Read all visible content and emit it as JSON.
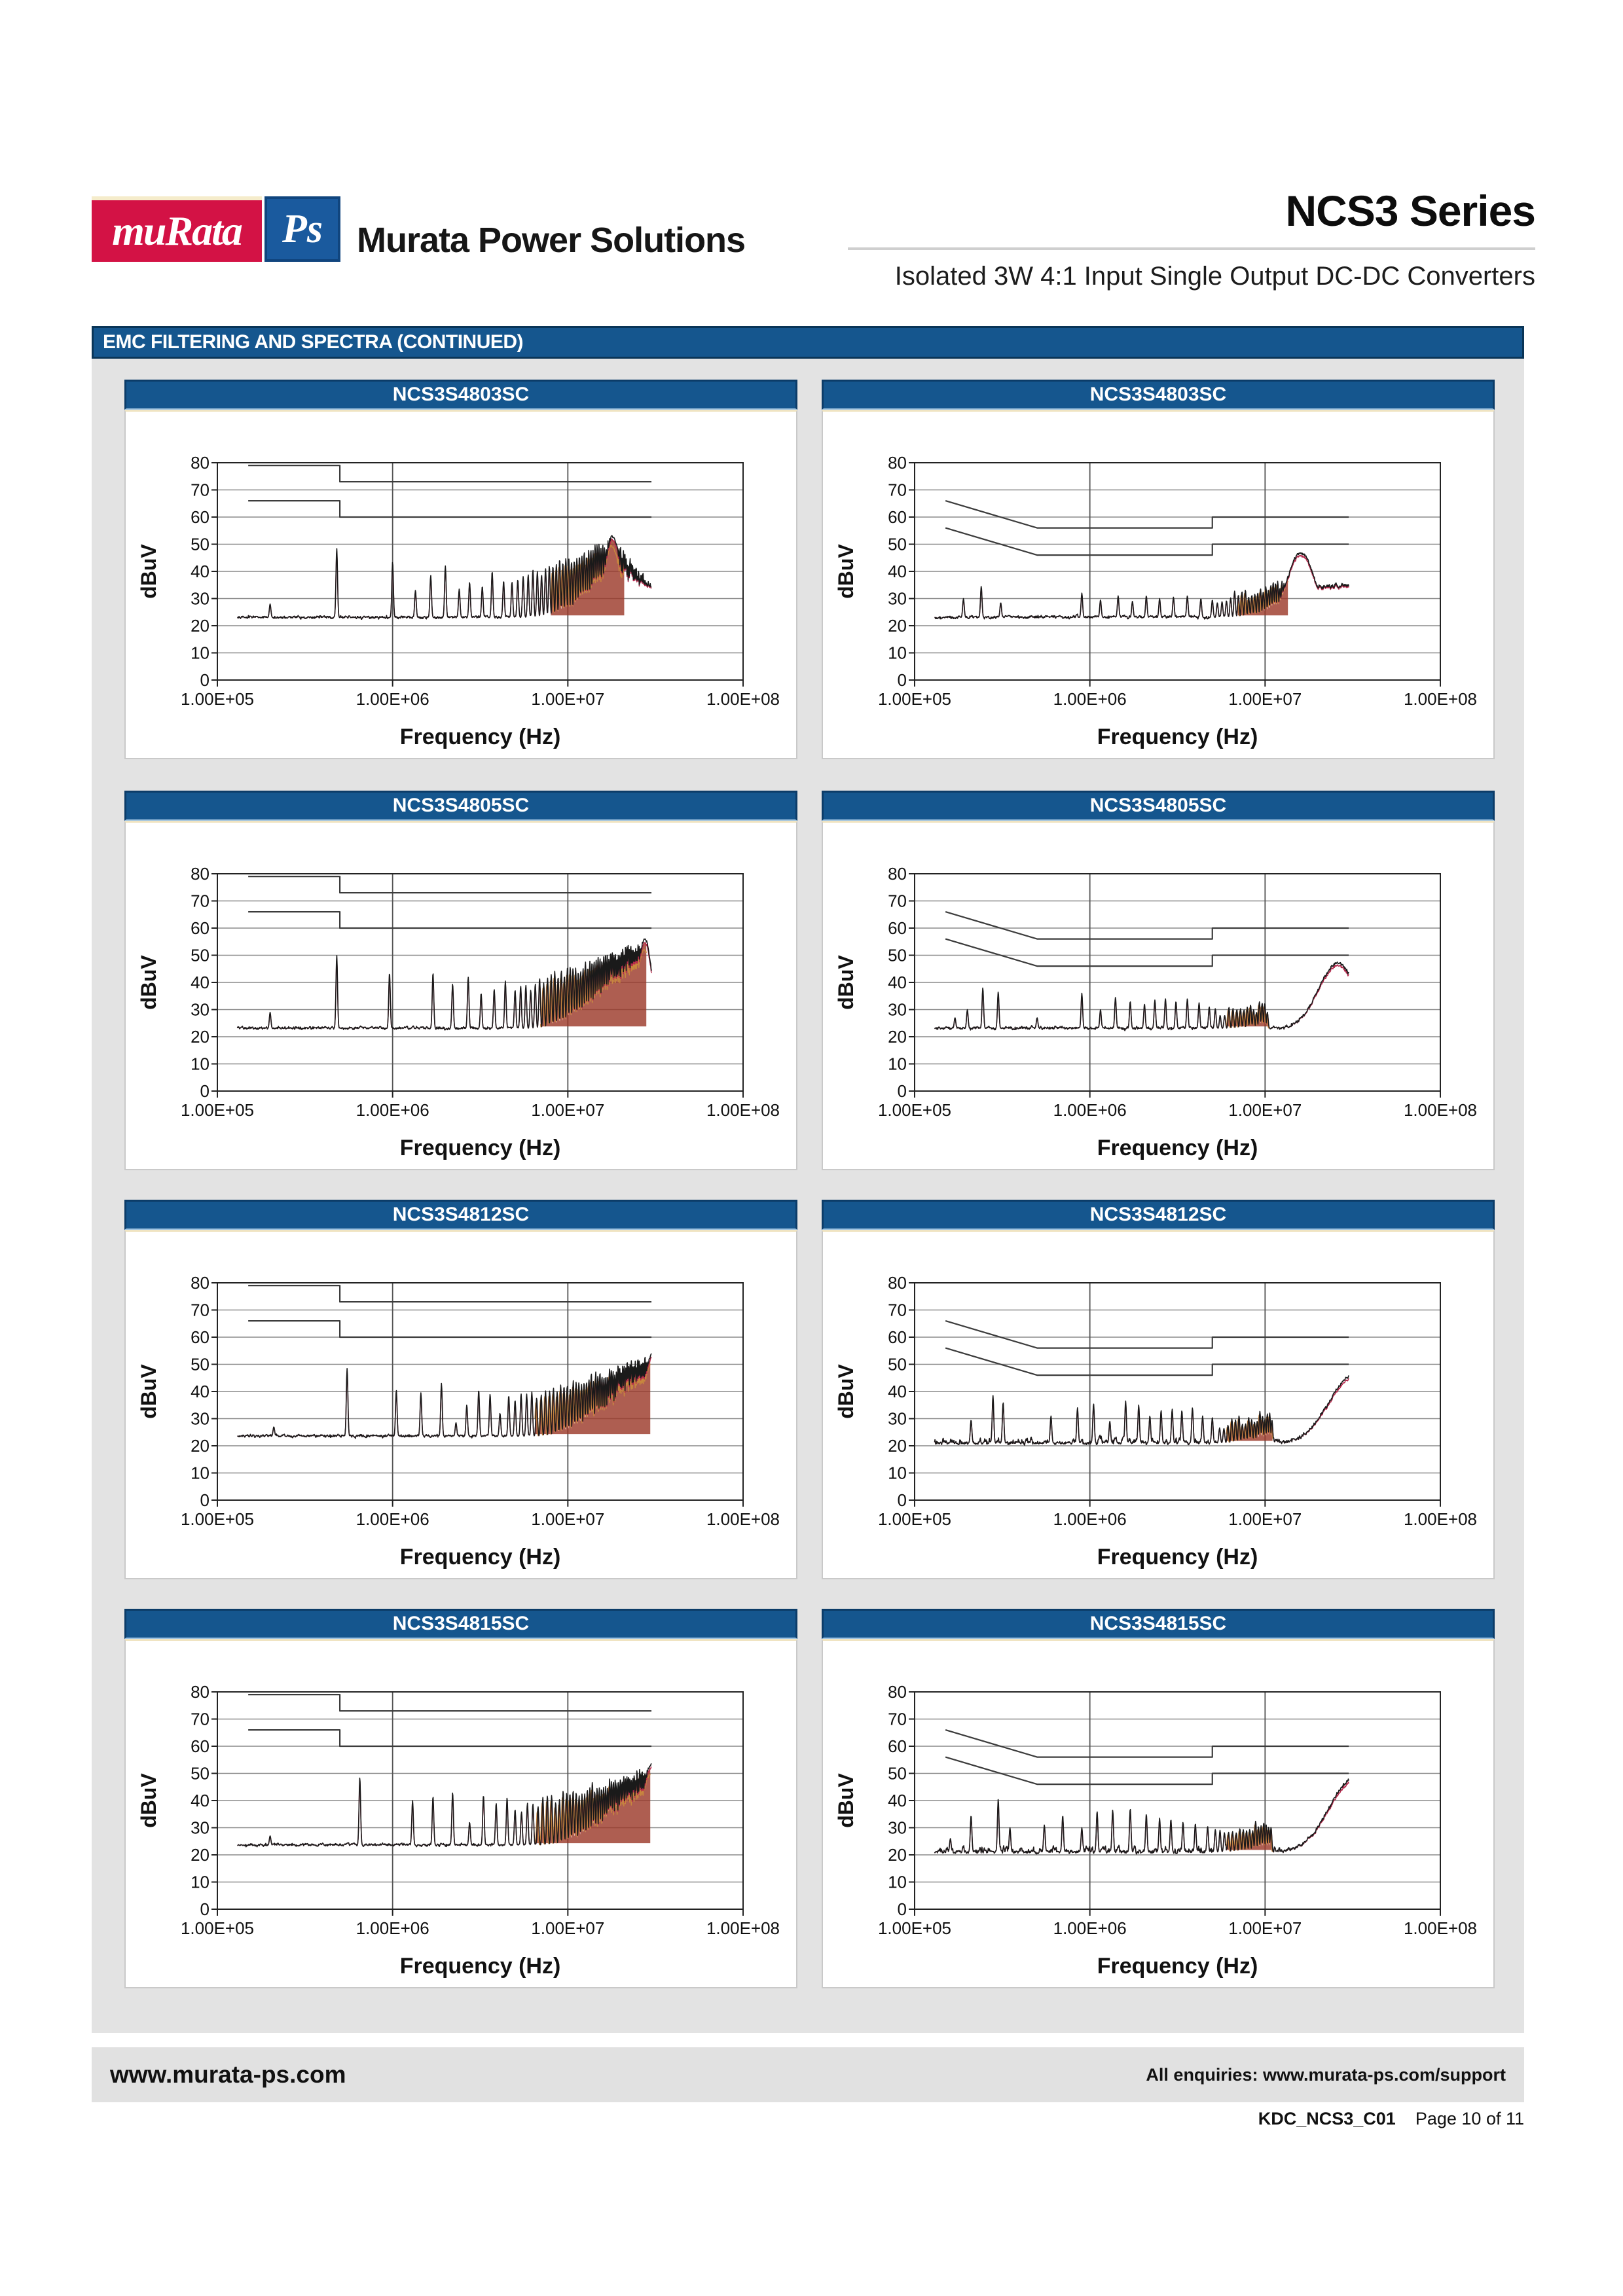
{
  "header": {
    "logo_text": "muRata",
    "logo_ps": "Ps",
    "company": "Murata Power Solutions",
    "series_title": "NCS3 Series",
    "subtitle": "Isolated 3W 4:1 Input Single Output DC-DC Converters"
  },
  "section_banner": "EMC FILTERING AND SPECTRA (CONTINUED)",
  "footer": {
    "site": "www.murata-ps.com",
    "enquiries": "All enquiries: www.murata-ps.com/support",
    "doc_code": "KDC_NCS3_C01",
    "page": "Page 10 of 11"
  },
  "colors": {
    "banner_blue": "#15568E",
    "panel_border_navy": "#0C3C68",
    "murata_red": "#D31245",
    "ps_blue": "#1A5A9E",
    "grid": "#8a8a8a",
    "decade_grid": "#555555",
    "axis": "#222222",
    "limit_line": "#3c3c3c",
    "trace_black": "#1a1a1a",
    "trace_red": "#B5274B",
    "trace_orange": "#C8873E",
    "fill_maroon": "#9A3626"
  },
  "chart_defaults": {
    "type": "line",
    "xlabel": "Frequency (Hz)",
    "ylabel": "dBuV",
    "x_ticks": [
      "1.00E+05",
      "1.00E+06",
      "1.00E+07",
      "1.00E+08"
    ],
    "y_ticks": [
      0,
      10,
      20,
      30,
      40,
      50,
      60,
      70,
      80
    ],
    "ylim": [
      0,
      80
    ],
    "xlim_hz": [
      100000,
      100000000
    ],
    "grid": true
  },
  "limit_profiles": {
    "A": {
      "quasi_peak": [
        [
          150000,
          79
        ],
        [
          500000,
          79
        ],
        [
          500000,
          73
        ],
        [
          30000000,
          73
        ]
      ],
      "average": [
        [
          150000,
          66
        ],
        [
          500000,
          66
        ],
        [
          500000,
          60
        ],
        [
          30000000,
          60
        ]
      ]
    },
    "B": {
      "quasi_peak": [
        [
          150000,
          66
        ],
        [
          500000,
          56
        ],
        [
          5000000,
          56
        ],
        [
          5000000,
          60
        ],
        [
          30000000,
          60
        ]
      ],
      "average": [
        [
          150000,
          56
        ],
        [
          500000,
          46
        ],
        [
          5000000,
          46
        ],
        [
          5000000,
          50
        ],
        [
          30000000,
          50
        ]
      ]
    }
  },
  "chart_data": [
    {
      "title": "NCS3S4803SC",
      "limit_profile": "A",
      "trace": {
        "seed": 11,
        "floor_db": 23,
        "floor_jitter": 0.7,
        "start_hz": 130000,
        "end_hz": 30000000,
        "peaks": [
          [
            200000,
            28
          ],
          [
            480000,
            48.5
          ],
          [
            1000000,
            43.5
          ],
          [
            1350000,
            33
          ],
          [
            1650000,
            38.5
          ],
          [
            2000000,
            42
          ],
          [
            2400000,
            33.5
          ],
          [
            2750000,
            36
          ],
          [
            3250000,
            34.5
          ],
          [
            3700000,
            40
          ],
          [
            4300000,
            36.5
          ]
        ],
        "comb": {
          "start_hz": 4800000,
          "stop_hz": 30000000,
          "step_hz": 380000,
          "from_db": 36,
          "peak_hz": 18000000,
          "peak_db": 51,
          "end_db": 34
        },
        "hump": {
          "hz": 18000000,
          "db": 53,
          "w": 0.045
        },
        "tail_db": 35,
        "fill": {
          "from_hz": 8000000,
          "to_hz": 21000000
        }
      }
    },
    {
      "title": "NCS3S4803SC",
      "limit_profile": "B",
      "trace": {
        "seed": 22,
        "floor_db": 23,
        "floor_jitter": 0.8,
        "start_hz": 130000,
        "end_hz": 30000000,
        "peaks": [
          [
            190000,
            30
          ],
          [
            240000,
            34.5
          ],
          [
            310000,
            28.5
          ],
          [
            900000,
            32
          ],
          [
            1150000,
            29.5
          ],
          [
            1450000,
            31
          ],
          [
            1750000,
            29
          ],
          [
            2100000,
            31
          ],
          [
            2500000,
            30
          ],
          [
            3000000,
            30.5
          ],
          [
            3600000,
            31
          ],
          [
            4300000,
            30
          ]
        ],
        "comb": {
          "start_hz": 5000000,
          "stop_hz": 13500000,
          "step_hz": 340000,
          "from_db": 29,
          "peak_hz": 13000000,
          "peak_db": 36,
          "end_db": 36
        },
        "hump": {
          "hz": 16000000,
          "db": 47,
          "w": 0.075
        },
        "tail_db": 35,
        "fill": {
          "from_hz": 7000000,
          "to_hz": 13500000
        }
      }
    },
    {
      "title": "NCS3S4805SC",
      "limit_profile": "A",
      "trace": {
        "seed": 33,
        "floor_db": 23,
        "floor_jitter": 0.7,
        "start_hz": 130000,
        "end_hz": 30000000,
        "peaks": [
          [
            200000,
            29
          ],
          [
            480000,
            50
          ],
          [
            960000,
            43.5
          ],
          [
            1700000,
            43.5
          ],
          [
            2200000,
            39.5
          ],
          [
            2700000,
            42
          ],
          [
            3200000,
            36
          ],
          [
            3800000,
            37.5
          ],
          [
            4400000,
            40.5
          ]
        ],
        "comb": {
          "start_hz": 5000000,
          "stop_hz": 30000000,
          "step_hz": 380000,
          "from_db": 37,
          "peak_hz": 27000000,
          "peak_db": 54,
          "end_db": 46
        },
        "hump": {
          "hz": 27500000,
          "db": 56,
          "w": 0.04
        },
        "tail_db": null,
        "fill": {
          "from_hz": 7000000,
          "to_hz": 28000000
        }
      }
    },
    {
      "title": "NCS3S4805SC",
      "limit_profile": "B",
      "trace": {
        "seed": 44,
        "floor_db": 23,
        "floor_jitter": 0.9,
        "start_hz": 130000,
        "end_hz": 30000000,
        "peaks": [
          [
            170000,
            27
          ],
          [
            200000,
            30
          ],
          [
            245000,
            38
          ],
          [
            300000,
            36.5
          ],
          [
            500000,
            27
          ],
          [
            900000,
            36
          ],
          [
            1150000,
            30
          ],
          [
            1400000,
            34.5
          ],
          [
            1700000,
            33
          ],
          [
            2050000,
            32
          ],
          [
            2350000,
            33.5
          ],
          [
            2700000,
            34
          ],
          [
            3100000,
            33
          ],
          [
            3600000,
            34
          ],
          [
            4200000,
            32.5
          ],
          [
            4800000,
            31
          ]
        ],
        "comb": {
          "start_hz": 5200000,
          "stop_hz": 10500000,
          "step_hz": 340000,
          "from_db": 29,
          "peak_hz": 9000000,
          "peak_db": 31,
          "end_db": 31
        },
        "hump": {
          "hz": 26000000,
          "db": 47,
          "w": 0.11
        },
        "tail_db": null,
        "fill": {
          "from_hz": 6000000,
          "to_hz": 10500000
        }
      }
    },
    {
      "title": "NCS3S4812SC",
      "limit_profile": "A",
      "trace": {
        "seed": 55,
        "floor_db": 23.5,
        "floor_jitter": 0.7,
        "start_hz": 130000,
        "end_hz": 30000000,
        "peaks": [
          [
            210000,
            27
          ],
          [
            550000,
            48.5
          ],
          [
            1050000,
            40.5
          ],
          [
            1450000,
            39.5
          ],
          [
            1900000,
            43
          ],
          [
            2300000,
            28.5
          ],
          [
            2650000,
            35
          ],
          [
            3100000,
            40.5
          ],
          [
            3600000,
            39
          ],
          [
            4100000,
            32
          ],
          [
            4600000,
            38.5
          ]
        ],
        "comb": {
          "start_hz": 5000000,
          "stop_hz": 30000000,
          "step_hz": 410000,
          "from_db": 37,
          "peak_hz": 30000000,
          "peak_db": 52,
          "end_db": 52
        },
        "hump": {
          "hz": 30500000,
          "db": 54,
          "w": 0.05
        },
        "tail_db": null,
        "fill": {
          "from_hz": 6500000,
          "to_hz": 29500000
        }
      }
    },
    {
      "title": "NCS3S4812SC",
      "limit_profile": "B",
      "trace": {
        "seed": 66,
        "floor_db": 21,
        "floor_jitter": 2.0,
        "start_hz": 130000,
        "end_hz": 30000000,
        "peaks": [
          [
            210000,
            29.5
          ],
          [
            280000,
            38.5
          ],
          [
            320000,
            36
          ],
          [
            600000,
            31
          ],
          [
            850000,
            34
          ],
          [
            1050000,
            35.5
          ],
          [
            1300000,
            29
          ],
          [
            1600000,
            36.5
          ],
          [
            1900000,
            35
          ],
          [
            2200000,
            31
          ],
          [
            2550000,
            33
          ],
          [
            2950000,
            33.5
          ],
          [
            3350000,
            33
          ],
          [
            3850000,
            34
          ],
          [
            4400000,
            31
          ],
          [
            5000000,
            30.5
          ]
        ],
        "comb": {
          "start_hz": 5500000,
          "stop_hz": 11000000,
          "step_hz": 320000,
          "from_db": 28,
          "peak_hz": 9000000,
          "peak_db": 31,
          "end_db": 30
        },
        "hump": {
          "hz": 32000000,
          "db": 46,
          "w": 0.14
        },
        "tail_db": null,
        "fill": {
          "from_hz": 6000000,
          "to_hz": 11000000
        }
      }
    },
    {
      "title": "NCS3S4815SC",
      "limit_profile": "A",
      "trace": {
        "seed": 77,
        "floor_db": 23.5,
        "floor_jitter": 0.7,
        "start_hz": 130000,
        "end_hz": 30000000,
        "peaks": [
          [
            200000,
            27
          ],
          [
            650000,
            48.5
          ],
          [
            1300000,
            40
          ],
          [
            1700000,
            41.5
          ],
          [
            2200000,
            43
          ],
          [
            2750000,
            32
          ],
          [
            3300000,
            42
          ],
          [
            3900000,
            39
          ],
          [
            4500000,
            41
          ]
        ],
        "comb": {
          "start_hz": 5000000,
          "stop_hz": 30000000,
          "step_hz": 440000,
          "from_db": 37,
          "peak_hz": 30000000,
          "peak_db": 51,
          "end_db": 51
        },
        "hump": {
          "hz": 30000000,
          "db": 53,
          "w": 0.05
        },
        "tail_db": null,
        "fill": {
          "from_hz": 6500000,
          "to_hz": 29500000
        }
      }
    },
    {
      "title": "NCS3S4815SC",
      "limit_profile": "B",
      "trace": {
        "seed": 88,
        "floor_db": 21,
        "floor_jitter": 2.2,
        "start_hz": 130000,
        "end_hz": 30000000,
        "peaks": [
          [
            160000,
            26
          ],
          [
            210000,
            34.5
          ],
          [
            300000,
            40.5
          ],
          [
            350000,
            30
          ],
          [
            550000,
            31
          ],
          [
            700000,
            34.5
          ],
          [
            900000,
            30
          ],
          [
            1100000,
            36
          ],
          [
            1350000,
            36.5
          ],
          [
            1700000,
            37
          ],
          [
            2100000,
            35
          ],
          [
            2500000,
            33.5
          ],
          [
            2900000,
            33
          ],
          [
            3400000,
            32
          ],
          [
            4000000,
            31.5
          ],
          [
            4700000,
            30.5
          ]
        ],
        "comb": {
          "start_hz": 5200000,
          "stop_hz": 11000000,
          "step_hz": 330000,
          "from_db": 28,
          "peak_hz": 9500000,
          "peak_db": 31,
          "end_db": 30
        },
        "hump": {
          "hz": 32000000,
          "db": 48,
          "w": 0.14
        },
        "tail_db": null,
        "fill": {
          "from_hz": 6000000,
          "to_hz": 11000000
        }
      }
    }
  ]
}
